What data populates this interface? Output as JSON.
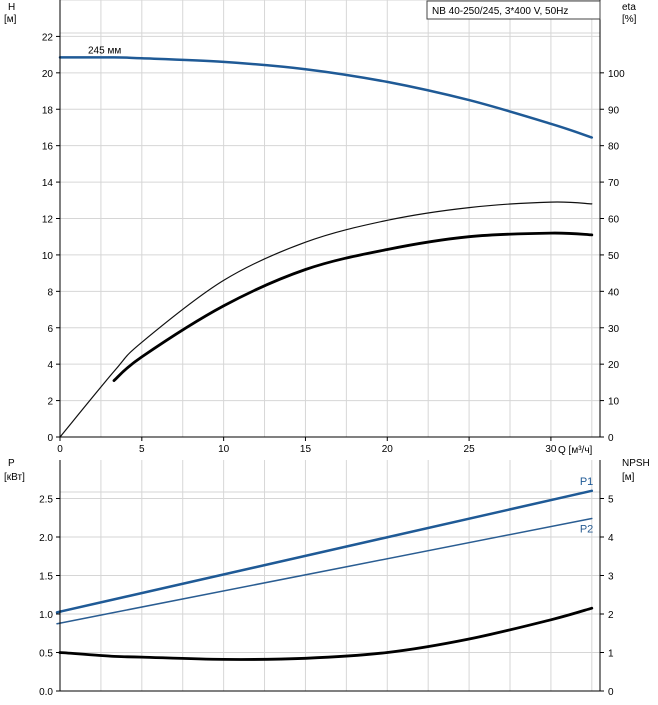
{
  "model_box": "NB 40-250/245, 3*400 V, 50Hz",
  "chart_data": [
    {
      "type": "line",
      "axes": {
        "x": {
          "label": "Q [м³/ч]",
          "range": [
            0,
            33
          ],
          "ticks": [
            0,
            5,
            10,
            15,
            20,
            25,
            30
          ]
        },
        "y_left": {
          "label_line1": "H",
          "label_line2": "[м]",
          "range": [
            0,
            24
          ],
          "ticks": [
            0,
            2,
            4,
            6,
            8,
            10,
            12,
            14,
            16,
            18,
            20,
            22
          ]
        },
        "y_right": {
          "label_line1": "eta",
          "label_line2": "[%]",
          "range": [
            0,
            120
          ],
          "ticks": [
            0,
            10,
            20,
            30,
            40,
            50,
            60,
            70,
            80,
            90,
            100
          ]
        }
      },
      "grid": true,
      "series": [
        {
          "name": "245 мм",
          "axis": "left",
          "color": "#1f5a96",
          "width": 2.5,
          "x": [
            0,
            3.3,
            5,
            10,
            15,
            20,
            25,
            30,
            32.5
          ],
          "y": [
            20.85,
            20.85,
            20.8,
            20.6,
            20.2,
            19.5,
            18.5,
            17.2,
            16.45
          ]
        },
        {
          "name": "",
          "axis": "right",
          "color": "#111111",
          "width": 1.2,
          "x": [
            0,
            3.3,
            5,
            10,
            15,
            20,
            25,
            30,
            32.5
          ],
          "y": [
            0,
            18,
            26,
            43,
            53.5,
            59.5,
            63,
            64.5,
            64
          ]
        },
        {
          "name": "",
          "axis": "right",
          "color": "#000000",
          "width": 2.8,
          "x": [
            3.3,
            5,
            10,
            15,
            20,
            25,
            30,
            32.5
          ],
          "y": [
            15.5,
            22,
            36,
            46,
            51.5,
            55,
            56,
            55.5
          ]
        }
      ]
    },
    {
      "type": "line",
      "axes": {
        "x": {
          "range": [
            0,
            33
          ]
        },
        "y_left": {
          "label_line1": "P",
          "label_line2": "[кВт]",
          "range": [
            0,
            3.0
          ],
          "ticks": [
            0.0,
            0.5,
            1.0,
            1.5,
            2.0,
            2.5
          ]
        },
        "y_right": {
          "label_line1": "NPSH",
          "label_line2": "[м]",
          "range": [
            0,
            6
          ],
          "ticks": [
            0,
            1,
            2,
            3,
            4,
            5
          ]
        }
      },
      "grid": true,
      "series": [
        {
          "name": "P1",
          "axis": "left",
          "color": "#1f5a96",
          "width": 2.5,
          "x": [
            0,
            3.3,
            32.5
          ],
          "y": [
            1.03,
            1.19,
            2.6
          ]
        },
        {
          "name": "P2",
          "axis": "left",
          "color": "#2a5d92",
          "width": 1.5,
          "x": [
            0,
            3.3,
            32.5
          ],
          "y": [
            0.88,
            1.02,
            2.24
          ]
        },
        {
          "name": "",
          "axis": "right",
          "color": "#000000",
          "width": 2.8,
          "x": [
            0,
            3.3,
            5,
            10,
            15,
            20,
            25,
            30,
            32.5
          ],
          "y": [
            1.0,
            0.9,
            0.88,
            0.82,
            0.85,
            1.0,
            1.35,
            1.85,
            2.15
          ]
        }
      ]
    }
  ]
}
